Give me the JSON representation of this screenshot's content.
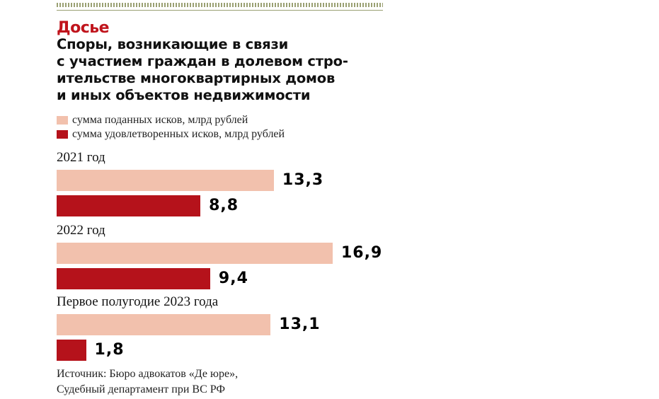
{
  "kicker": "Досье",
  "title": "Споры, возникающие в связи\nс участием граждан в долевом стро-\nительстве многоквартирных домов\nи иных объектов недвижимости",
  "colors": {
    "filed": "#f2c1ad",
    "satisfied": "#b5121b",
    "kicker": "#c0141c"
  },
  "chart_data": {
    "type": "bar",
    "orientation": "horizontal",
    "categories": [
      "2021 год",
      "2022 год",
      "Первое полугодие 2023 года"
    ],
    "series": [
      {
        "name": "сумма поданных исков, млрд рублей",
        "values": [
          13.3,
          16.9,
          13.1
        ],
        "labels": [
          "13,3",
          "16,9",
          "13,1"
        ]
      },
      {
        "name": "сумма удовлетворенных исков, млрд рублей",
        "values": [
          8.8,
          9.4,
          1.8
        ],
        "labels": [
          "8,8",
          "9,4",
          "1,8"
        ]
      }
    ],
    "xlim": [
      0,
      16.9
    ],
    "grid": false,
    "legend": "top-left"
  },
  "source": "Источник: Бюро адвокатов «Де юре»,\nСудебный департамент при ВС РФ"
}
